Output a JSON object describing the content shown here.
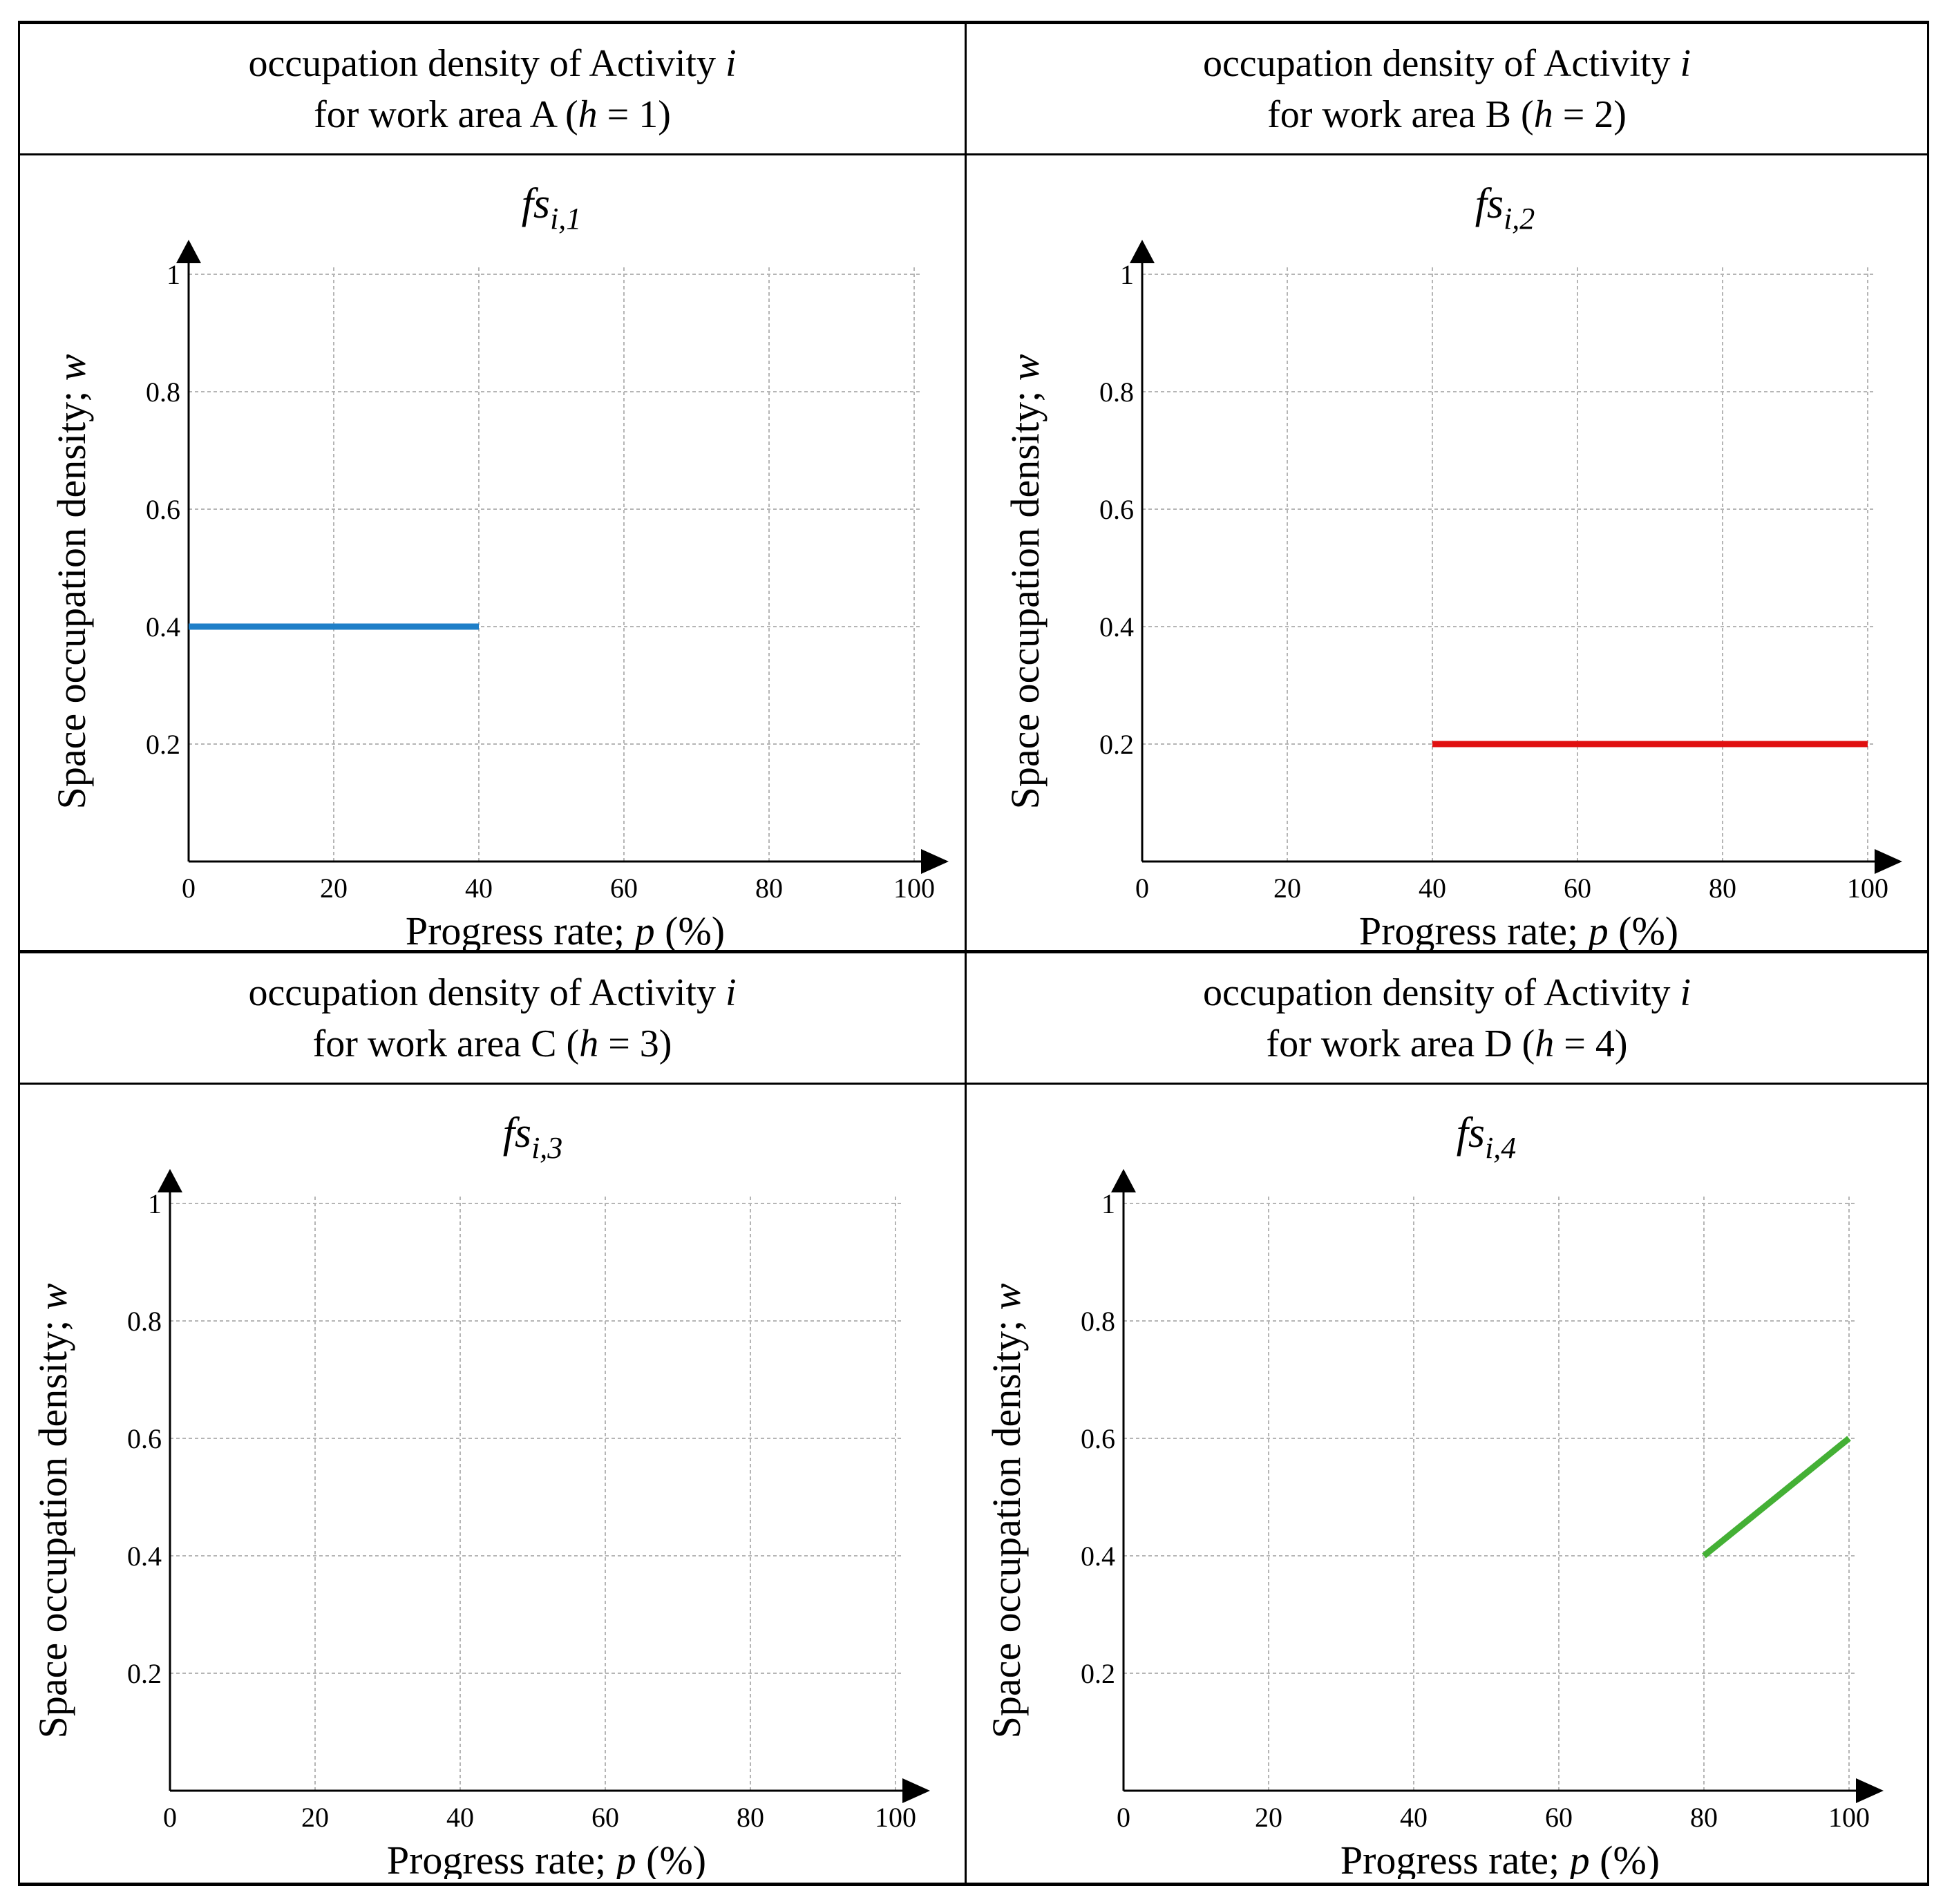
{
  "panels": [
    {
      "head_line1": "occupation density of Activity ",
      "head_var": "i",
      "head_line2_pre": "for work area A (",
      "head_h": "h",
      "head_line2_post": " = 1)"
    },
    {
      "head_line1": "occupation density of Activity ",
      "head_var": "i",
      "head_line2_pre": "for work area B (",
      "head_h": "h",
      "head_line2_post": " = 2)"
    },
    {
      "head_line1": "occupation density of Activity ",
      "head_var": "i",
      "head_line2_pre": "for work area C (",
      "head_h": "h",
      "head_line2_post": " = 3)"
    },
    {
      "head_line1": "occupation density of Activity ",
      "head_var": "i",
      "head_line2_pre": "for work area D (",
      "head_h": "h",
      "head_line2_post": " = 4)"
    }
  ],
  "chart_data": [
    {
      "type": "line",
      "title": "fs",
      "title_sub": "i,1",
      "xlabel_pre": "Progress rate; ",
      "xlabel_var": "p",
      "xlabel_post": " (%)",
      "ylabel_pre": "Space occupation density; ",
      "ylabel_var": "w",
      "xlim": [
        0,
        100
      ],
      "ylim": [
        0,
        1
      ],
      "xticks": [
        0,
        20,
        40,
        60,
        80,
        100
      ],
      "xtick_labels": [
        "0",
        "20",
        "40",
        "60",
        "80",
        "100"
      ],
      "yticks": [
        0.2,
        0.4,
        0.6,
        0.8,
        1
      ],
      "ytick_labels": [
        "0.2",
        "0.4",
        "0.6",
        "0.8",
        "1"
      ],
      "grid": true,
      "series": [
        {
          "name": "A",
          "color": "#1f7fc8",
          "points": [
            [
              0,
              0.4
            ],
            [
              40,
              0.4
            ]
          ]
        }
      ]
    },
    {
      "type": "line",
      "title": "fs",
      "title_sub": "i,2",
      "xlabel_pre": "Progress rate; ",
      "xlabel_var": "p",
      "xlabel_post": " (%)",
      "ylabel_pre": "Space occupation density; ",
      "ylabel_var": "w",
      "xlim": [
        0,
        100
      ],
      "ylim": [
        0,
        1
      ],
      "xticks": [
        0,
        20,
        40,
        60,
        80,
        100
      ],
      "xtick_labels": [
        "0",
        "20",
        "40",
        "60",
        "80",
        "100"
      ],
      "yticks": [
        0.2,
        0.4,
        0.6,
        0.8,
        1
      ],
      "ytick_labels": [
        "0.2",
        "0.4",
        "0.6",
        "0.8",
        "1"
      ],
      "grid": true,
      "series": [
        {
          "name": "B",
          "color": "#e01010",
          "points": [
            [
              40,
              0.2
            ],
            [
              100,
              0.2
            ]
          ]
        }
      ]
    },
    {
      "type": "line",
      "title": "fs",
      "title_sub": "i,3",
      "xlabel_pre": "Progress rate; ",
      "xlabel_var": "p",
      "xlabel_post": " (%)",
      "ylabel_pre": "Space occupation density; ",
      "ylabel_var": "w",
      "xlim": [
        0,
        100
      ],
      "ylim": [
        0,
        1
      ],
      "xticks": [
        0,
        20,
        40,
        60,
        80,
        100
      ],
      "xtick_labels": [
        "0",
        "20",
        "40",
        "60",
        "80",
        "100"
      ],
      "yticks": [
        0.2,
        0.4,
        0.6,
        0.8,
        1
      ],
      "ytick_labels": [
        "0.2",
        "0.4",
        "0.6",
        "0.8",
        "1"
      ],
      "grid": true,
      "series": []
    },
    {
      "type": "line",
      "title": "fs",
      "title_sub": "i,4",
      "xlabel_pre": "Progress rate; ",
      "xlabel_var": "p",
      "xlabel_post": " (%)",
      "ylabel_pre": "Space occupation density; ",
      "ylabel_var": "w",
      "xlim": [
        0,
        100
      ],
      "ylim": [
        0,
        1
      ],
      "xticks": [
        0,
        20,
        40,
        60,
        80,
        100
      ],
      "xtick_labels": [
        "0",
        "20",
        "40",
        "60",
        "80",
        "100"
      ],
      "yticks": [
        0.2,
        0.4,
        0.6,
        0.8,
        1
      ],
      "ytick_labels": [
        "0.2",
        "0.4",
        "0.6",
        "0.8",
        "1"
      ],
      "grid": true,
      "series": [
        {
          "name": "D",
          "color": "#44b035",
          "points": [
            [
              80,
              0.4
            ],
            [
              100,
              0.6
            ]
          ]
        }
      ]
    }
  ]
}
